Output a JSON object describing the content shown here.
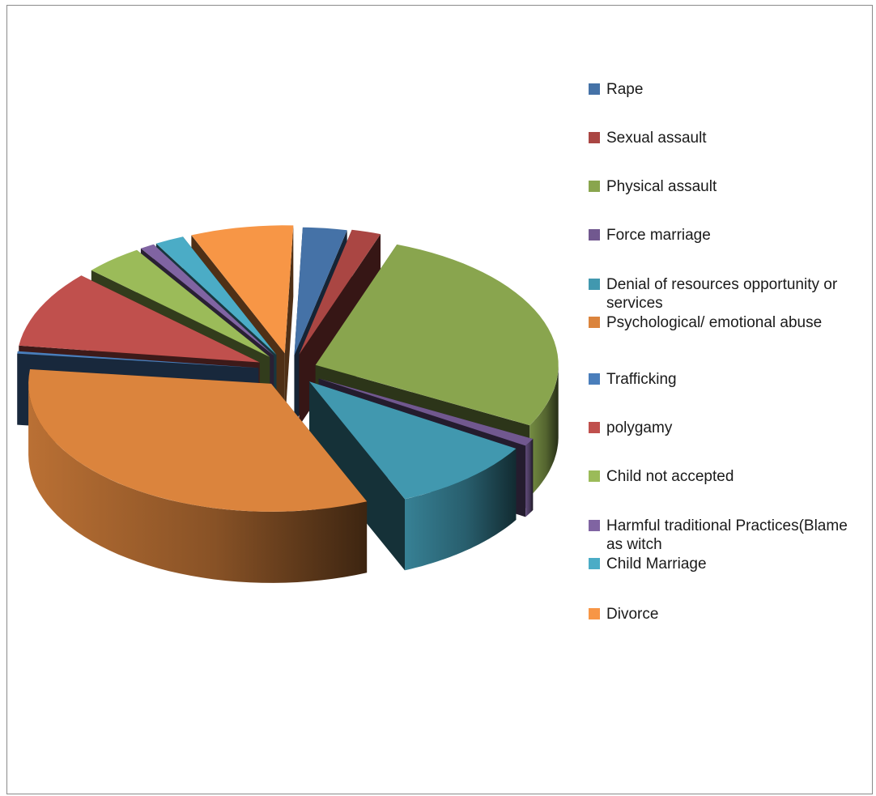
{
  "chart_data": {
    "type": "pie",
    "title": "",
    "legend_position": "right",
    "three_d": true,
    "categories": [
      "Rape",
      "Sexual assault",
      "Physical assault",
      "Force marriage",
      "Denial of resources opportunity or services",
      "Psychological/ emotional abuse",
      "Trafficking",
      "polygamy",
      "Child not accepted",
      "Harmful traditional Practices(Blame as witch",
      "Child Marriage",
      "Divorce"
    ],
    "values": [
      3,
      2,
      28,
      1,
      10,
      34,
      0.3,
      10,
      4,
      1,
      2,
      7
    ],
    "colors": [
      "#4572a7",
      "#aa4643",
      "#89a54e",
      "#71588f",
      "#4198af",
      "#db843d",
      "#4a7ebb",
      "#c0504d",
      "#9bbb59",
      "#8064a2",
      "#4bacc6",
      "#f79646"
    ],
    "legend_label_lines": [
      [
        "Rape"
      ],
      [
        "Sexual assault"
      ],
      [
        "Physical assault"
      ],
      [
        "Force marriage"
      ],
      [
        "Denial of resources opportunity or",
        "services"
      ],
      [
        "Psychological/ emotional abuse"
      ],
      [
        "Trafficking"
      ],
      [
        "polygamy"
      ],
      [
        "Child not accepted"
      ],
      [
        "Harmful traditional Practices(Blame",
        "as witch"
      ],
      [
        "Child Marriage"
      ],
      [
        "Divorce"
      ]
    ]
  }
}
